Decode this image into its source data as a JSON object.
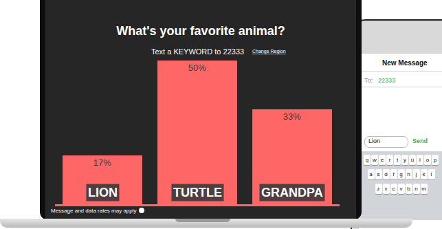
{
  "chart_data": {
    "type": "bar",
    "title": "What's your favorite animal?",
    "subtitle": "Text a KEYWORD to 22333",
    "categories": [
      "LION",
      "TURTLE",
      "GRANDPA"
    ],
    "values": [
      17,
      50,
      33
    ],
    "value_labels": [
      "17%",
      "50%",
      "33%"
    ],
    "color": "#ff6666",
    "ylim": [
      0,
      50
    ],
    "data_labels": true,
    "tick_labels": false,
    "grid": false
  },
  "screen": {
    "link": "Change Region",
    "footer": "Message and data rates may apply"
  },
  "phone": {
    "header": "New Message",
    "to_label": "To:",
    "to": "22333",
    "message": "Lion",
    "send": "Send",
    "keyboard": [
      "qwertyuiop",
      "asdfghjkl",
      "zxcvbnm"
    ]
  }
}
